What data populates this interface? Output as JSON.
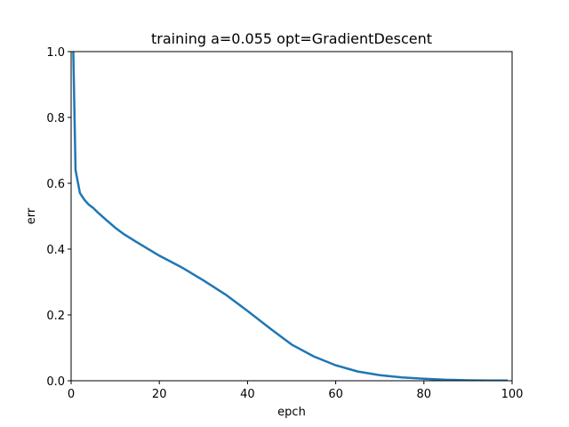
{
  "chart_data": {
    "type": "line",
    "title": "training a=0.055 opt=GradientDescent",
    "xlabel": "epch",
    "ylabel": "err",
    "xlim": [
      0,
      100
    ],
    "ylim": [
      0,
      1
    ],
    "xticks": [
      "0",
      "20",
      "40",
      "60",
      "80",
      "100"
    ],
    "yticks": [
      "0.0",
      "0.2",
      "0.4",
      "0.6",
      "0.8",
      "1.0"
    ],
    "grid": false,
    "line_color": "#1f77b4",
    "series": [
      {
        "x": [
          0,
          1,
          2,
          3,
          4,
          5,
          6,
          8,
          10,
          12,
          15,
          20,
          25,
          30,
          35,
          40,
          45,
          50,
          55,
          60,
          65,
          70,
          75,
          80,
          85,
          90,
          95,
          99
        ],
        "values": [
          1.35,
          0.64,
          0.57,
          0.55,
          0.535,
          0.525,
          0.512,
          0.488,
          0.465,
          0.445,
          0.42,
          0.38,
          0.345,
          0.305,
          0.262,
          0.212,
          0.16,
          0.11,
          0.074,
          0.047,
          0.028,
          0.017,
          0.01,
          0.006,
          0.003,
          0.0015,
          0.0008,
          0.0005
        ]
      }
    ]
  }
}
